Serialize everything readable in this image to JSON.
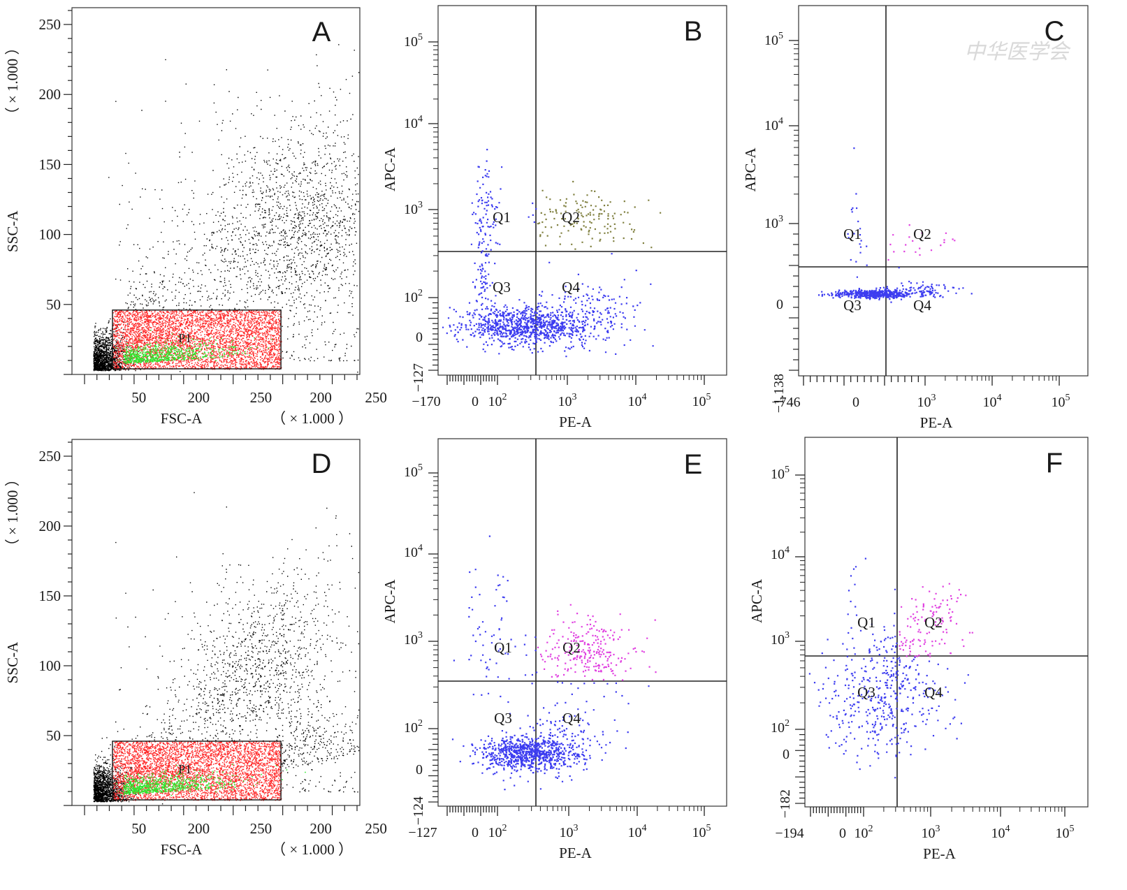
{
  "watermark": "中华医学会",
  "chart_data": [
    {
      "id": "A",
      "type": "scatter",
      "panel_label": "A",
      "xlabel": "FSC-A",
      "ylabel": "SSC-A",
      "x_scale_note": "（ × 1.000 ）",
      "y_scale_note": "（ × 1.000 ）",
      "x_ticks": [
        "50",
        "200",
        "250",
        "200",
        "250"
      ],
      "y_ticks": [
        "50",
        "100",
        "150",
        "200",
        "250"
      ],
      "ylim": [
        0,
        262
      ],
      "gate": {
        "name": "P1",
        "x_range": [
          38,
          196
        ],
        "y_range": [
          4,
          46
        ],
        "color": "#ff2a2a",
        "subset_color": "#2ee82e"
      },
      "series": [
        {
          "population": "all events",
          "color": "#000000"
        },
        {
          "population": "P1 gate",
          "color": "#ff2a2a"
        },
        {
          "population": "subset",
          "color": "#2ee82e"
        }
      ]
    },
    {
      "id": "B",
      "type": "scatter",
      "panel_label": "B",
      "xlabel": "PE-A",
      "ylabel": "APC-A",
      "x_ticks": [
        "-170",
        "0",
        "10^2",
        "10^3",
        "10^4",
        "10^5"
      ],
      "y_ticks": [
        "-127",
        "0",
        "10^2",
        "10^3",
        "10^4",
        "10^5"
      ],
      "axis_scale": "biexponential",
      "quadrant_gate": {
        "x": 350,
        "y": 330
      },
      "quadrants": [
        "Q1",
        "Q2",
        "Q3",
        "Q4"
      ],
      "colors": {
        "Q1": "#3c3cf0",
        "Q2": "#808040",
        "Q3": "#3c3cf0",
        "Q4": "#3c3cf0"
      }
    },
    {
      "id": "C",
      "type": "scatter",
      "panel_label": "C",
      "xlabel": "PE-A",
      "ylabel": "APC-A",
      "x_ticks": [
        "-746",
        "0",
        "10^3",
        "10^4",
        "10^5"
      ],
      "y_ticks": [
        "-1.138",
        "0",
        "10^3",
        "10^4",
        "10^5"
      ],
      "axis_scale": "biexponential",
      "quadrant_gate": {
        "x": 500,
        "y": 450
      },
      "quadrants": [
        "Q1",
        "Q2",
        "Q3",
        "Q4"
      ],
      "colors": {
        "Q1": "#3c3cf0",
        "Q2": "#e040e0",
        "Q3": "#3c3cf0",
        "Q4": "#3c3cf0"
      }
    },
    {
      "id": "D",
      "type": "scatter",
      "panel_label": "D",
      "xlabel": "FSC-A",
      "ylabel": "SSC-A",
      "x_scale_note": "（ × 1.000 ）",
      "y_scale_note": "（ × 1.000 ）",
      "x_ticks": [
        "50",
        "200",
        "250",
        "200",
        "250"
      ],
      "y_ticks": [
        "50",
        "100",
        "150",
        "200",
        "250"
      ],
      "ylim": [
        0,
        262
      ],
      "gate": {
        "name": "P1",
        "x_range": [
          38,
          196
        ],
        "y_range": [
          4,
          46
        ],
        "color": "#ff2a2a",
        "subset_color": "#2ee82e"
      },
      "series": [
        {
          "population": "all events",
          "color": "#000000"
        },
        {
          "population": "P1 gate",
          "color": "#ff2a2a"
        },
        {
          "population": "subset",
          "color": "#2ee82e"
        }
      ]
    },
    {
      "id": "E",
      "type": "scatter",
      "panel_label": "E",
      "xlabel": "PE-A",
      "ylabel": "APC-A",
      "x_ticks": [
        "-127",
        "0",
        "10^2",
        "10^3",
        "10^4",
        "10^5"
      ],
      "y_ticks": [
        "-124",
        "0",
        "10^2",
        "10^3",
        "10^4",
        "10^5"
      ],
      "axis_scale": "biexponential",
      "quadrant_gate": {
        "x": 350,
        "y": 330
      },
      "quadrants": [
        "Q1",
        "Q2",
        "Q3",
        "Q4"
      ],
      "colors": {
        "Q1": "#3c3cf0",
        "Q2": "#e040e0",
        "Q3": "#3c3cf0",
        "Q4": "#3c3cf0"
      }
    },
    {
      "id": "F",
      "type": "scatter",
      "panel_label": "F",
      "xlabel": "PE-A",
      "ylabel": "APC-A",
      "x_ticks": [
        "-194",
        "0",
        "10^2",
        "10^3",
        "10^4",
        "10^5"
      ],
      "y_ticks": [
        "-182",
        "0",
        "10^2",
        "10^3",
        "10^4",
        "10^5"
      ],
      "axis_scale": "biexponential",
      "quadrant_gate": {
        "x": 350,
        "y": 650
      },
      "quadrants": [
        "Q1",
        "Q2",
        "Q3",
        "Q4"
      ],
      "colors": {
        "Q1": "#3c3cf0",
        "Q2": "#e040e0",
        "Q3": "#3c3cf0",
        "Q4": "#3c3cf0"
      }
    }
  ]
}
